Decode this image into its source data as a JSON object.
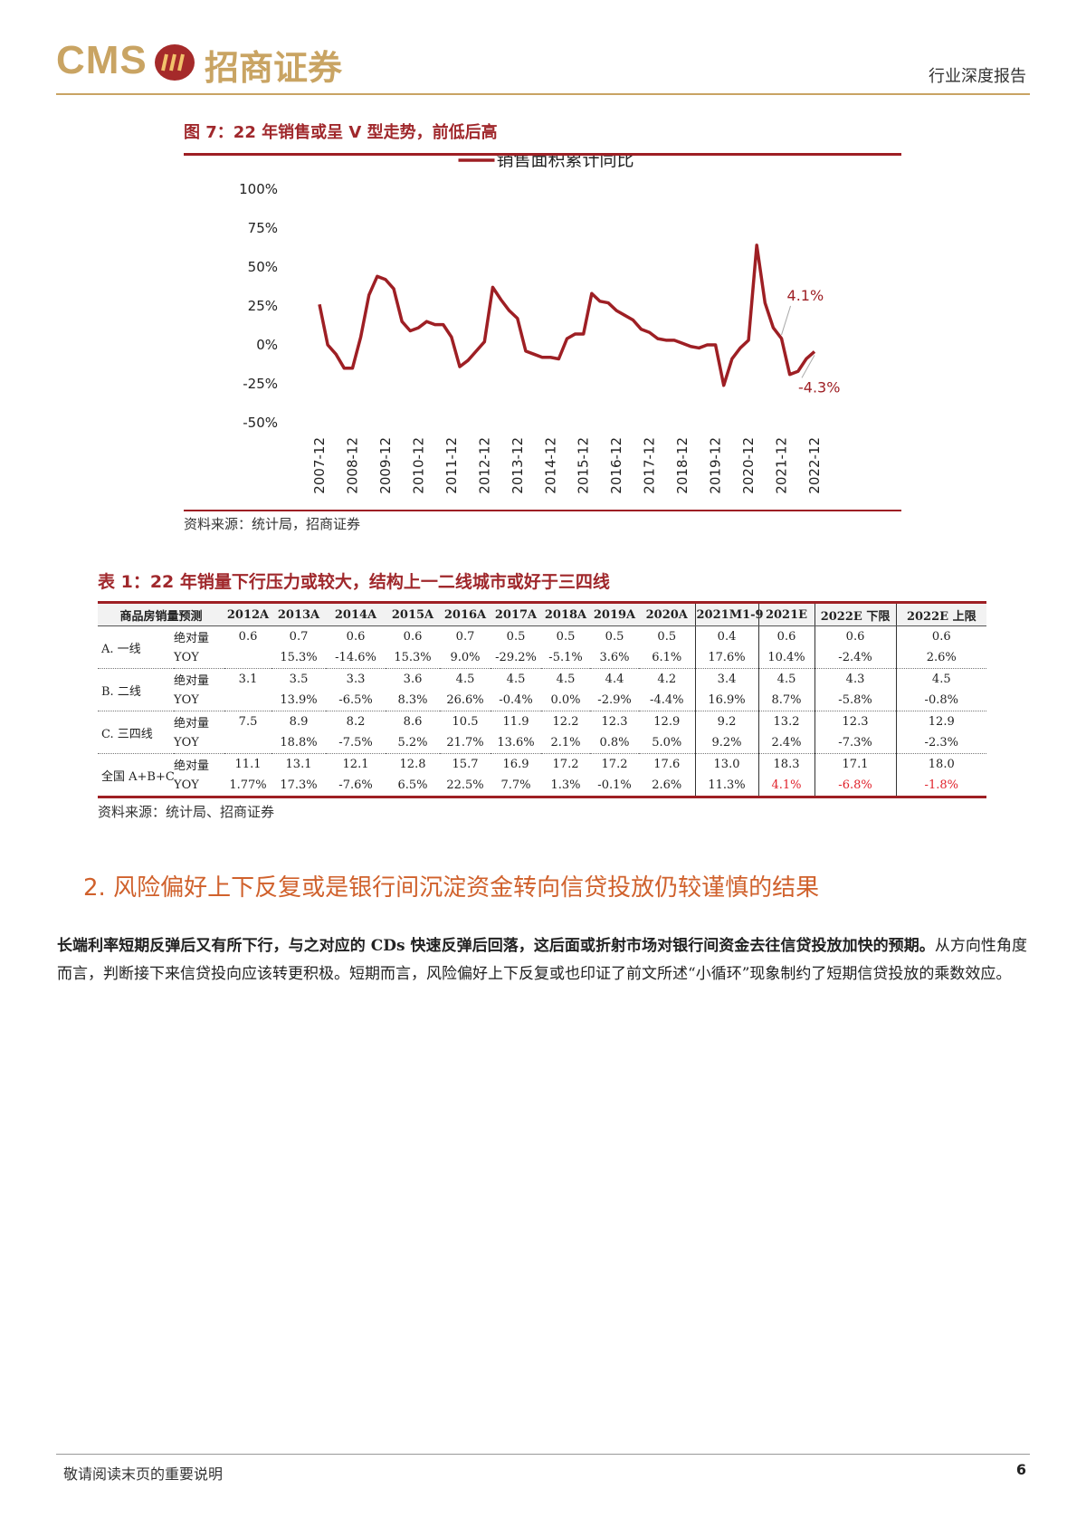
{
  "header": {
    "logo": "CMS",
    "company": "招商证券",
    "report_type": "行业深度报告"
  },
  "figure": {
    "title": "图 7：22 年销售或呈 V 型走势，前低后高",
    "source": "资料来源：统计局，招商证券"
  },
  "chart_data": {
    "type": "line",
    "legend": "top",
    "grid": false,
    "categories": [
      "2007-12",
      null,
      null,
      null,
      "2008-12",
      null,
      null,
      null,
      "2009-12",
      null,
      null,
      null,
      "2010-12",
      null,
      null,
      null,
      "2011-12",
      null,
      null,
      null,
      "2012-12",
      null,
      null,
      null,
      "2013-12",
      null,
      null,
      null,
      "2014-12",
      null,
      null,
      null,
      "2015-12",
      null,
      null,
      null,
      "2016-12",
      null,
      null,
      null,
      "2017-12",
      null,
      null,
      null,
      "2018-12",
      null,
      null,
      null,
      "2019-12",
      null,
      null,
      null,
      "2020-12",
      null,
      null,
      null,
      "2021-12",
      null,
      null,
      null,
      "2022-12"
    ],
    "series": [
      {
        "name": "销售面积累计同比",
        "color": "#9e1f24",
        "values": [
          26,
          0,
          -6,
          -15,
          -15,
          5,
          32,
          44,
          42,
          36,
          15,
          9,
          11,
          15,
          13,
          13,
          5,
          -14,
          -10,
          -4,
          2,
          37,
          29,
          22,
          17,
          -4,
          -6,
          -8,
          -8,
          -9,
          4,
          7,
          7,
          33,
          28,
          27,
          22,
          19,
          16,
          10,
          8,
          4,
          3,
          3,
          1,
          -1,
          -2,
          0,
          0,
          -26,
          -9,
          -2,
          3,
          64,
          27,
          11,
          4.1,
          -19,
          -17,
          -9,
          -4.3
        ],
        "value_labels": [
          null,
          null,
          null,
          null,
          null,
          null,
          null,
          null,
          null,
          null,
          null,
          null,
          null,
          null,
          null,
          null,
          null,
          null,
          null,
          null,
          null,
          null,
          null,
          null,
          null,
          null,
          null,
          null,
          null,
          null,
          null,
          null,
          null,
          null,
          null,
          null,
          null,
          null,
          null,
          null,
          null,
          null,
          null,
          null,
          null,
          null,
          null,
          null,
          null,
          null,
          null,
          null,
          null,
          null,
          null,
          null,
          "4.1%",
          null,
          null,
          null,
          "-4.3%"
        ]
      }
    ],
    "ylim": [
      -50,
      100
    ],
    "yticks": [
      {
        "value": -50,
        "label": "-50%"
      },
      {
        "value": -25,
        "label": "-25%"
      },
      {
        "value": 0,
        "label": "0%"
      },
      {
        "value": 25,
        "label": "25%"
      },
      {
        "value": 50,
        "label": "50%"
      },
      {
        "value": 75,
        "label": "75%"
      },
      {
        "value": 100,
        "label": "100%"
      }
    ]
  },
  "table": {
    "title": "表 1：22 年销量下行压力或较大，结构上一二线城市或好于三四线",
    "header": [
      "商品房销量预测",
      "2012A",
      "2013A",
      "2014A",
      "2015A",
      "2016A",
      "2017A",
      "2018A",
      "2019A",
      "2020A",
      "2021M1-9",
      "2021E",
      "2022E 下限",
      "2022E 上限"
    ],
    "rows": [
      {
        "group": "A. 一线",
        "metrics": [
          {
            "name": "绝对量",
            "values": [
              "0.6",
              "0.7",
              "0.6",
              "0.6",
              "0.7",
              "0.5",
              "0.5",
              "0.5",
              "0.5",
              "0.4",
              "0.6",
              "0.6",
              "0.6"
            ]
          },
          {
            "name": "YOY",
            "values": [
              null,
              "15.3%",
              "-14.6%",
              "15.3%",
              "9.0%",
              "-29.2%",
              "-5.1%",
              "3.6%",
              "6.1%",
              "17.6%",
              "10.4%",
              "-2.4%",
              "2.6%"
            ]
          }
        ]
      },
      {
        "group": "B. 二线",
        "metrics": [
          {
            "name": "绝对量",
            "values": [
              "3.1",
              "3.5",
              "3.3",
              "3.6",
              "4.5",
              "4.5",
              "4.5",
              "4.4",
              "4.2",
              "3.4",
              "4.5",
              "4.3",
              "4.5"
            ]
          },
          {
            "name": "YOY",
            "values": [
              null,
              "13.9%",
              "-6.5%",
              "8.3%",
              "26.6%",
              "-0.4%",
              "0.0%",
              "-2.9%",
              "-4.4%",
              "16.9%",
              "8.7%",
              "-5.8%",
              "-0.8%"
            ]
          }
        ]
      },
      {
        "group": "C. 三四线",
        "metrics": [
          {
            "name": "绝对量",
            "values": [
              "7.5",
              "8.9",
              "8.2",
              "8.6",
              "10.5",
              "11.9",
              "12.2",
              "12.3",
              "12.9",
              "9.2",
              "13.2",
              "12.3",
              "12.9"
            ]
          },
          {
            "name": "YOY",
            "values": [
              null,
              "18.8%",
              "-7.5%",
              "5.2%",
              "21.7%",
              "13.6%",
              "2.1%",
              "0.8%",
              "5.0%",
              "9.2%",
              "2.4%",
              "-7.3%",
              "-2.3%"
            ]
          }
        ]
      },
      {
        "group": "全国 A+B+C",
        "metrics": [
          {
            "name": "绝对量",
            "values": [
              "11.1",
              "13.1",
              "12.1",
              "12.8",
              "15.7",
              "16.9",
              "17.2",
              "17.2",
              "17.6",
              "13.0",
              "18.3",
              "17.1",
              "18.0"
            ]
          },
          {
            "name": "YOY",
            "values": [
              "1.77%",
              "17.3%",
              "-7.6%",
              "6.5%",
              "22.5%",
              "7.7%",
              "1.3%",
              "-0.1%",
              "2.6%",
              "11.3%",
              "4.1%",
              "-6.8%",
              "-1.8%"
            ]
          }
        ]
      }
    ],
    "source": "资料来源：统计局、招商证券"
  },
  "section": {
    "title": "2. 风险偏好上下反复或是银行间沉淀资金转向信贷投放仍较谨慎的结果",
    "paragraph": {
      "emphasis": "长端利率短期反弹后又有所下行，与之对应的 CDs 快速反弹后回落，这后面或折射市场对银行间资金去往信贷投放加快的预期。",
      "text": "从方向性角度而言，判断接下来信贷投向应该转更积极。短期而言，风险偏好上下反复或也印证了前文所述“小循环”现象制约了短期信贷投放的乘数效应。"
    }
  },
  "footer": {
    "note": "敬请阅读末页的重要说明",
    "page": "6"
  }
}
